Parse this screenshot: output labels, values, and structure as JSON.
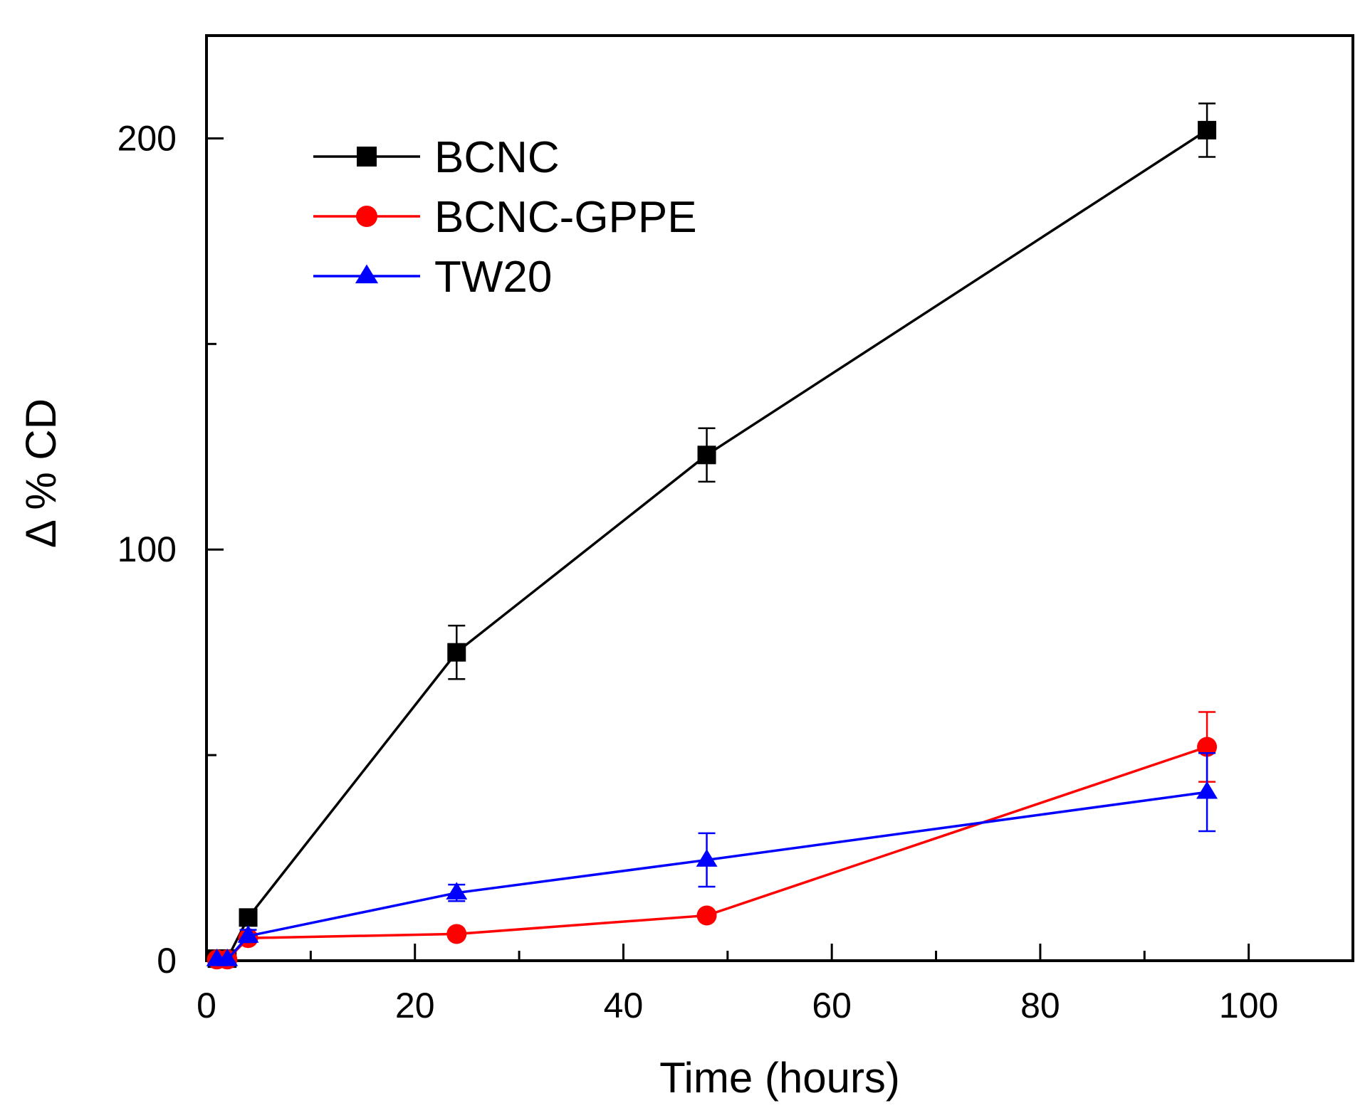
{
  "chart_data": {
    "type": "line",
    "title": "",
    "xlabel": "Time (hours)",
    "ylabel": "Δ % CD",
    "xlim": [
      0,
      110
    ],
    "ylim": [
      0,
      225
    ],
    "x_ticks": [
      0,
      20,
      40,
      60,
      80,
      100
    ],
    "x_minor_ticks": [
      10,
      30,
      50,
      70,
      90,
      110
    ],
    "y_ticks": [
      0,
      100,
      200
    ],
    "y_minor_ticks": [
      50,
      150
    ],
    "legend_position": "top-left",
    "series": [
      {
        "name": "BCNC",
        "color": "#000000",
        "marker": "square",
        "x": [
          1,
          2,
          4,
          24,
          48,
          96
        ],
        "y": [
          0.5,
          0.5,
          10.5,
          75,
          123,
          202
        ],
        "err": [
          0,
          0,
          0,
          6.5,
          6.5,
          6.5
        ]
      },
      {
        "name": "BCNC-GPPE",
        "color": "#ff0000",
        "marker": "circle",
        "x": [
          1,
          2,
          4,
          24,
          48,
          96
        ],
        "y": [
          0.3,
          0.3,
          5.5,
          6.5,
          11,
          52
        ],
        "err": [
          0,
          0,
          0,
          0,
          0,
          8.5
        ]
      },
      {
        "name": "TW20",
        "color": "#0000ff",
        "marker": "triangle",
        "x": [
          1,
          2,
          4,
          24,
          48,
          96
        ],
        "y": [
          0.3,
          0.3,
          6,
          16.5,
          24.5,
          41
        ],
        "err": [
          0,
          0,
          1.5,
          2,
          6.5,
          9.5
        ]
      }
    ]
  }
}
